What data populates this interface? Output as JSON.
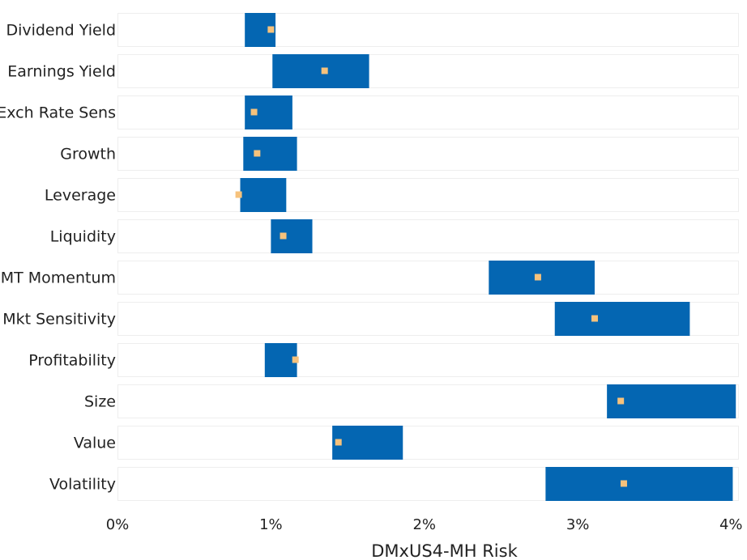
{
  "chart_data": {
    "type": "bar",
    "orientation": "horizontal",
    "style": "floating-range-with-marker",
    "xlabel": "DMxUS4-MH Risk",
    "xlim": [
      0,
      4.05
    ],
    "xticks": [
      {
        "value": 0,
        "label": "0%"
      },
      {
        "value": 1,
        "label": "1%"
      },
      {
        "value": 2,
        "label": "2%"
      },
      {
        "value": 3,
        "label": "3%"
      },
      {
        "value": 4,
        "label": "4%"
      }
    ],
    "categories": [
      "Dividend Yield",
      "Earnings Yield",
      "Exch Rate Sens",
      "Growth",
      "Leverage",
      "Liquidity",
      "MT Momentum",
      "Mkt Sensitivity",
      "Profitability",
      "Size",
      "Value",
      "Volatility"
    ],
    "ranges": [
      {
        "low": 0.83,
        "high": 1.03,
        "marker": 1.0
      },
      {
        "low": 1.01,
        "high": 1.64,
        "marker": 1.35
      },
      {
        "low": 0.83,
        "high": 1.14,
        "marker": 0.89
      },
      {
        "low": 0.82,
        "high": 1.17,
        "marker": 0.91
      },
      {
        "low": 0.8,
        "high": 1.1,
        "marker": 0.79
      },
      {
        "low": 1.0,
        "high": 1.27,
        "marker": 1.08
      },
      {
        "low": 2.42,
        "high": 3.11,
        "marker": 2.74
      },
      {
        "low": 2.85,
        "high": 3.73,
        "marker": 3.11
      },
      {
        "low": 0.96,
        "high": 1.17,
        "marker": 1.16
      },
      {
        "low": 3.19,
        "high": 4.03,
        "marker": 3.28
      },
      {
        "low": 1.4,
        "high": 1.86,
        "marker": 1.44
      },
      {
        "low": 2.79,
        "high": 4.01,
        "marker": 3.3
      }
    ],
    "colors": {
      "bar": "#0466b2",
      "marker": "#f6c27c",
      "track_border": "#eeeeee",
      "track_fill": "#ffffff"
    },
    "grid": false,
    "legend": "none"
  }
}
